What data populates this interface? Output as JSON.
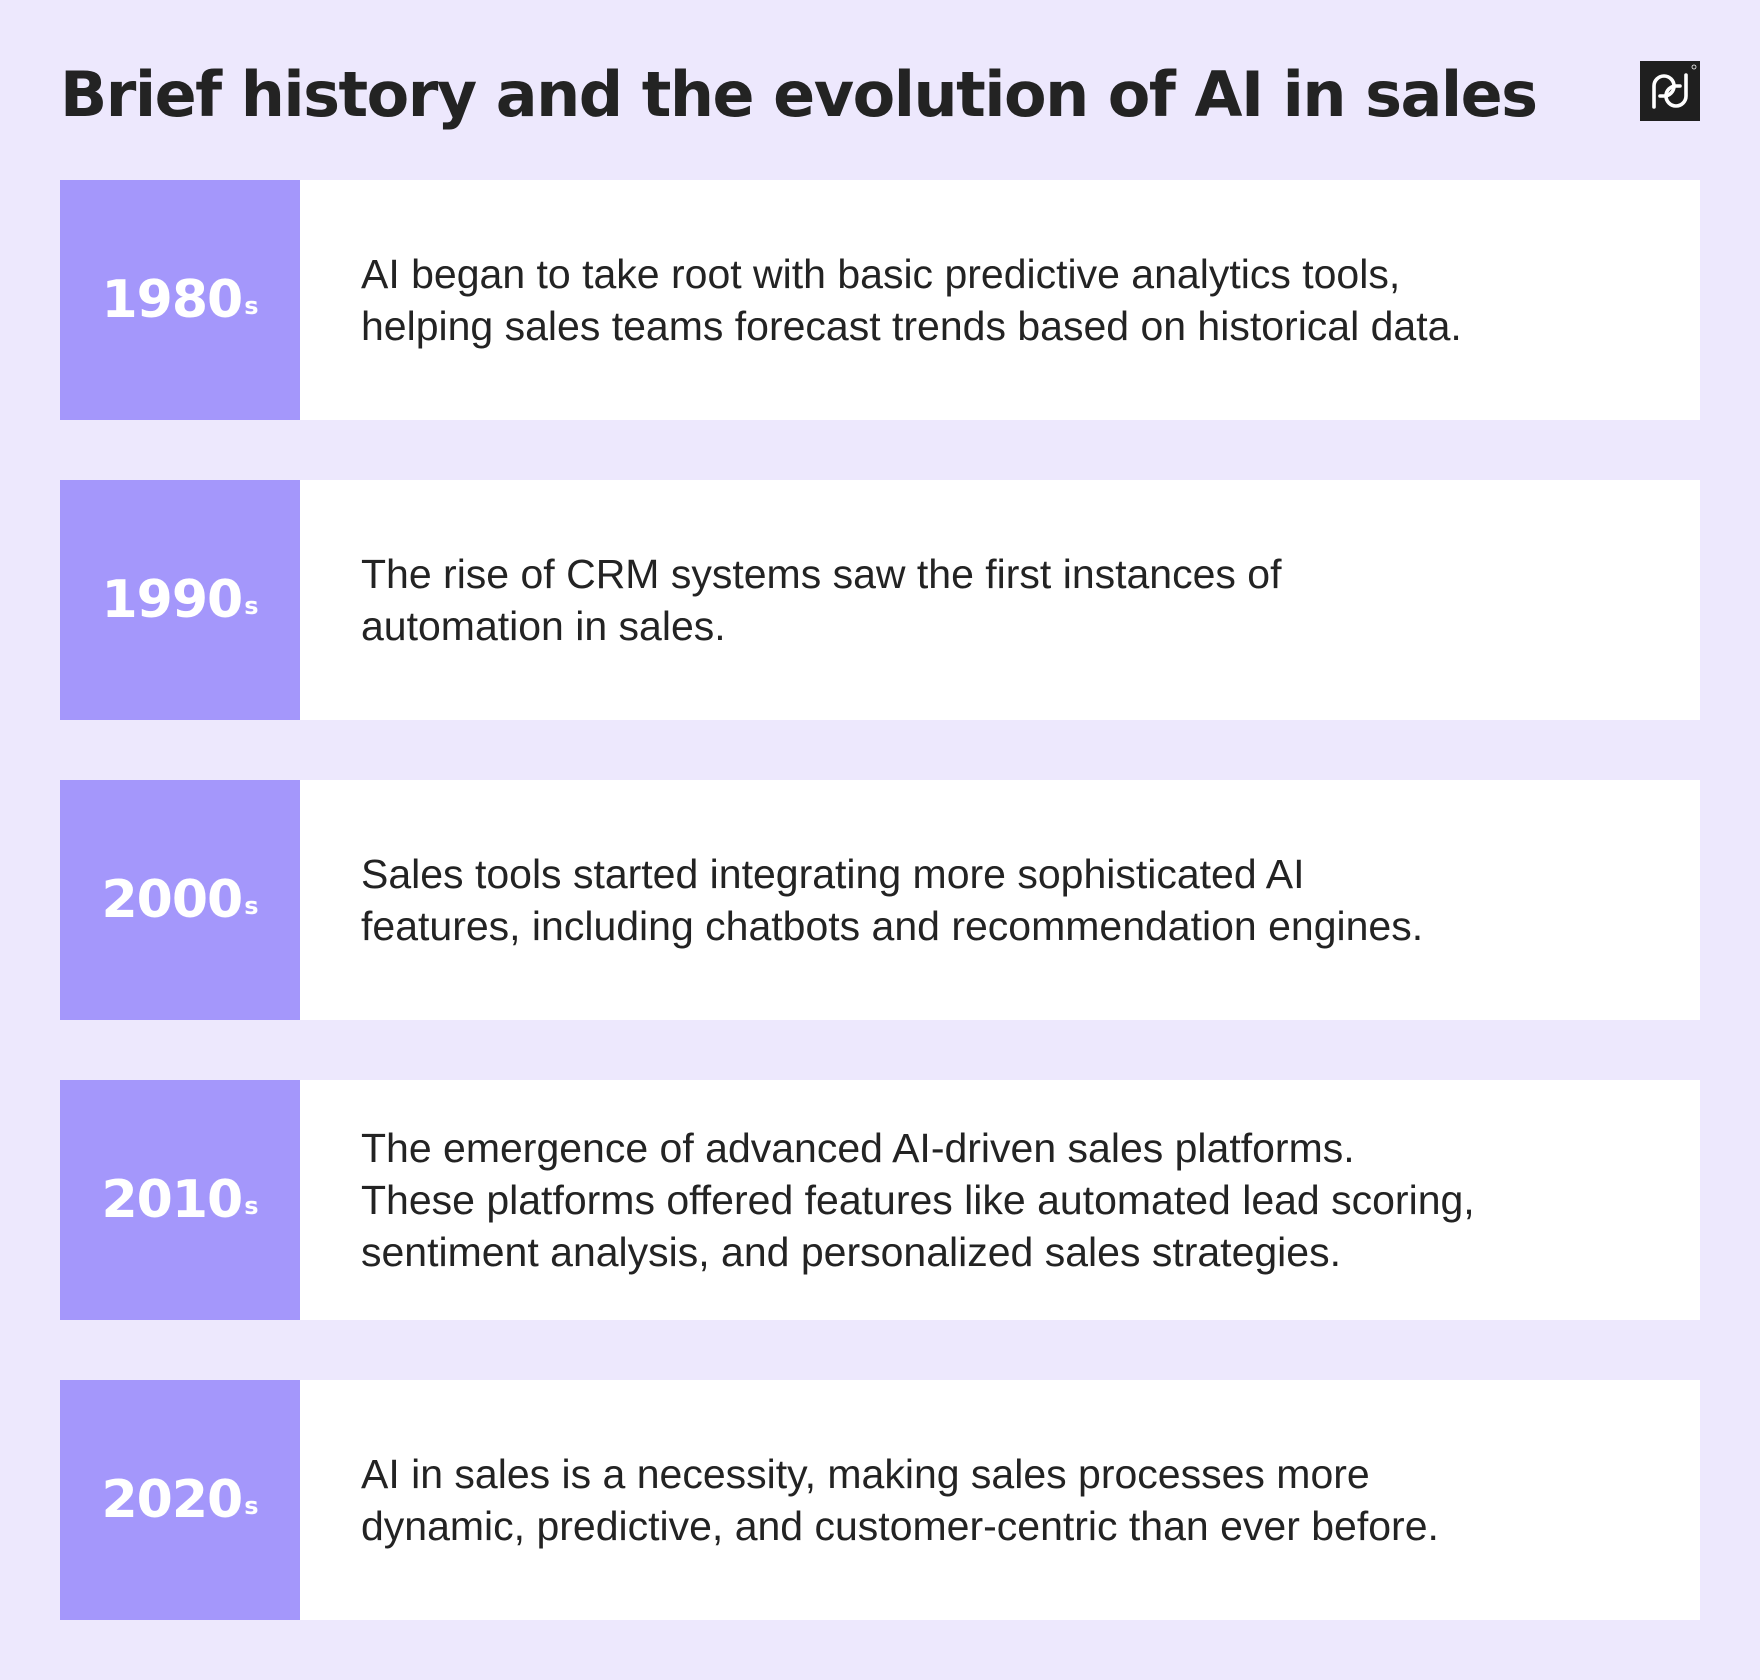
{
  "title": "Brief history and the evolution of AI in sales",
  "logo": {
    "name": "pd-logo",
    "background_color": "#1f1f1f"
  },
  "colors": {
    "page_background": "#ede8fd",
    "era_background": "#a497fb",
    "card_background": "#ffffff",
    "text": "#232323"
  },
  "timeline": [
    {
      "decade": "1980",
      "suffix": "s",
      "description": "AI began to take root with basic predictive analytics tools,\nhelping sales teams forecast trends based on historical data."
    },
    {
      "decade": "1990",
      "suffix": "s",
      "description": "The rise of CRM systems saw the first instances of\nautomation in sales."
    },
    {
      "decade": "2000",
      "suffix": "s",
      "description": "Sales tools started integrating more sophisticated AI\nfeatures, including chatbots and recommendation engines."
    },
    {
      "decade": "2010",
      "suffix": "s",
      "description": "The emergence of advanced AI-driven sales platforms.\nThese platforms offered features like automated lead scoring,\nsentiment analysis, and personalized sales strategies."
    },
    {
      "decade": "2020",
      "suffix": "s",
      "description": "AI in sales is a necessity, making sales processes more\ndynamic, predictive, and customer-centric than ever before."
    }
  ]
}
